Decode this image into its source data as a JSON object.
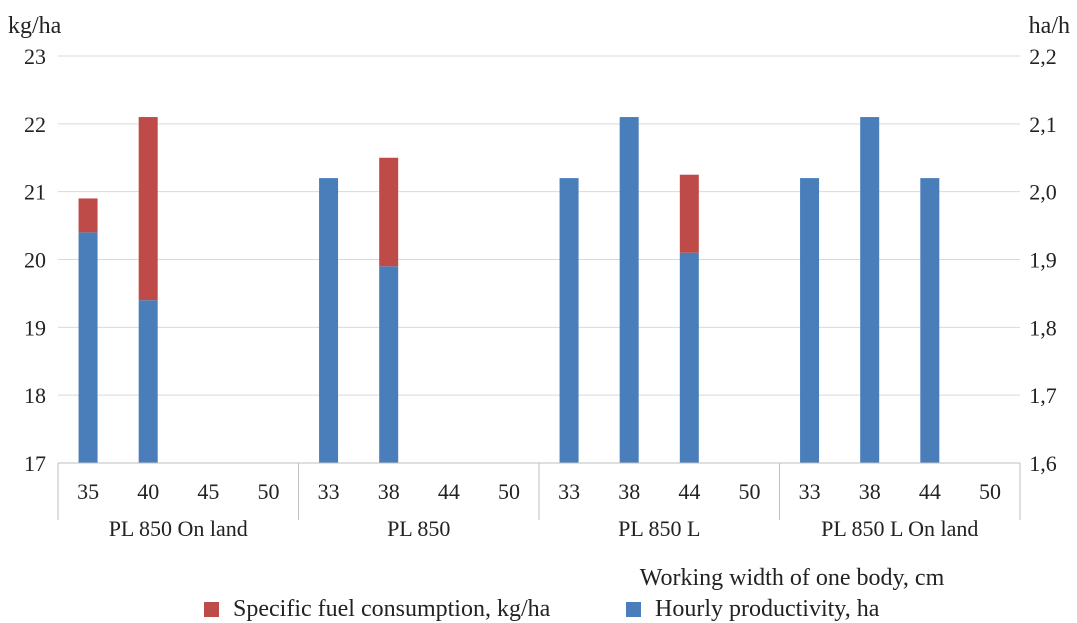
{
  "chart_data": {
    "type": "bar",
    "stacked": true,
    "title": "",
    "y_left_label": "kg/ha",
    "y_right_label": "ha/h",
    "xlabel": "Working width of one body, cm",
    "y_left_ticks": [
      "23",
      "22",
      "21",
      "20",
      "19",
      "18",
      "17"
    ],
    "y_right_ticks": [
      "2,2",
      "2,1",
      "2,0",
      "1,9",
      "1,8",
      "1,7",
      "1,6"
    ],
    "ylim_left": [
      17,
      23
    ],
    "ylim_right": [
      1.6,
      2.2
    ],
    "grid": true,
    "groups": [
      {
        "name": "PL 850 On land",
        "categories": [
          "35",
          "40",
          "45",
          "50"
        ]
      },
      {
        "name": "PL 850",
        "categories": [
          "33",
          "38",
          "44",
          "50"
        ]
      },
      {
        "name": "PL 850 L",
        "categories": [
          "33",
          "38",
          "44",
          "50"
        ]
      },
      {
        "name": "PL 850 L On land",
        "categories": [
          "33",
          "38",
          "44",
          "50"
        ]
      }
    ],
    "series": [
      {
        "name": "Hourly productivity, ha",
        "color": "#4a7ebb",
        "values": [
          1.94,
          1.84,
          null,
          null,
          2.02,
          1.89,
          null,
          null,
          2.02,
          2.11,
          1.91,
          null,
          2.02,
          2.11,
          2.02,
          null
        ]
      },
      {
        "name": "Specific fuel consumption, kg/ha",
        "color": "#be4b48",
        "values": [
          20.9,
          22.1,
          null,
          null,
          null,
          21.5,
          null,
          null,
          null,
          null,
          21.25,
          null,
          null,
          null,
          null,
          null
        ]
      }
    ],
    "legend_order": [
      "Specific fuel consumption, kg/ha",
      "Hourly productivity, ha"
    ],
    "legend_position": "bottom"
  }
}
